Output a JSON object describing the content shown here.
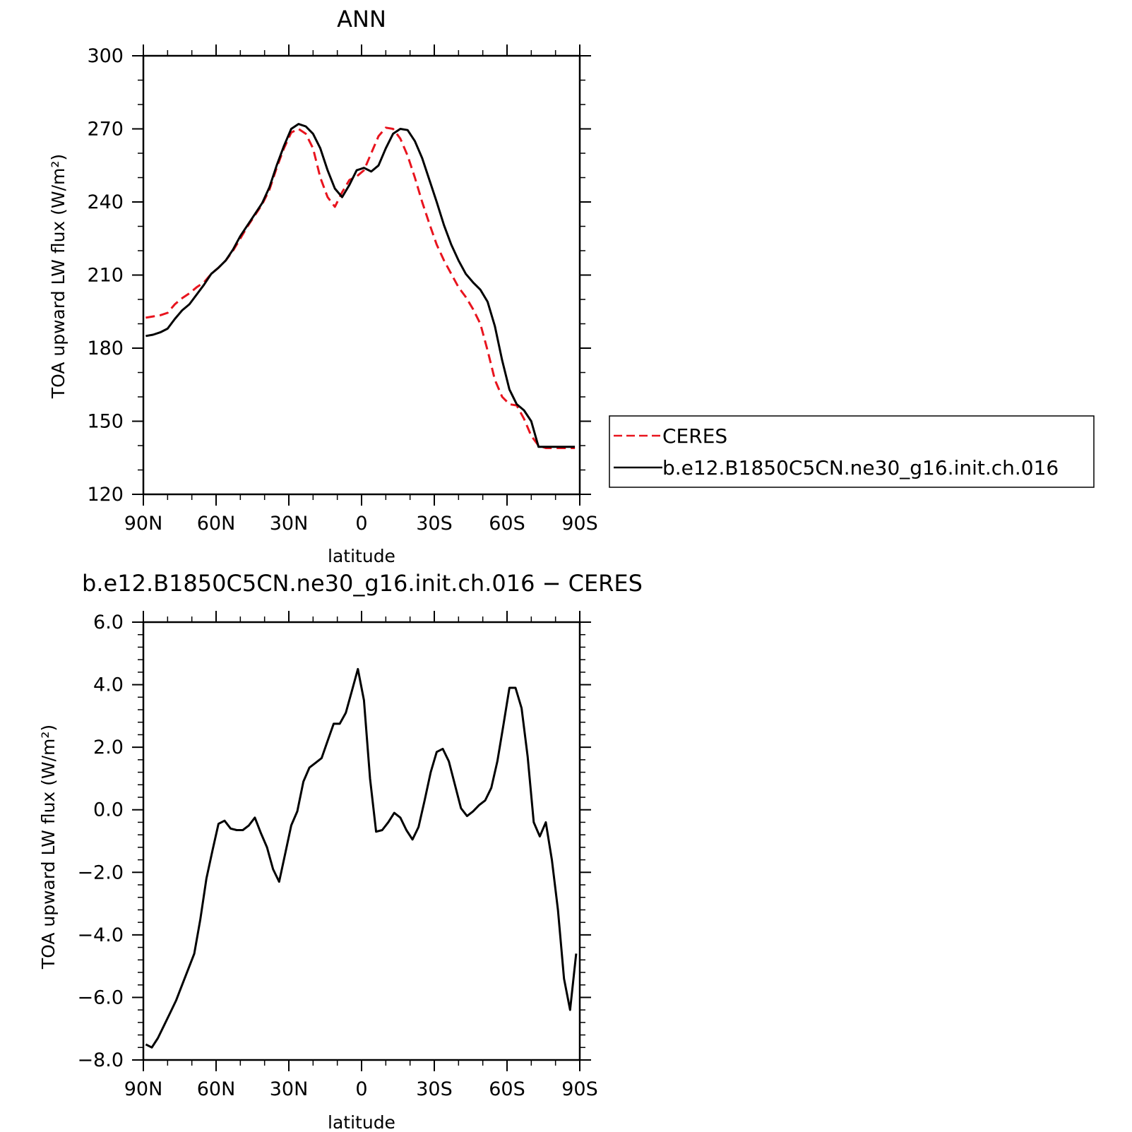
{
  "chart_data": [
    {
      "type": "line",
      "title": "ANN",
      "xlabel": "latitude",
      "ylabel": "TOA upward LW flux (W/m²)",
      "xlim": [
        90,
        -90
      ],
      "ylim": [
        120,
        300
      ],
      "yticks": [
        120,
        150,
        180,
        210,
        240,
        270,
        300
      ],
      "ytick_labels": [
        "120",
        "150",
        "180",
        "210",
        "240",
        "270",
        "300"
      ],
      "xticks": [
        90,
        60,
        30,
        0,
        -30,
        -60,
        -90
      ],
      "xtick_labels": [
        "90N",
        "60N",
        "30N",
        "0",
        "30S",
        "60S",
        "90S"
      ],
      "x": [
        89,
        86,
        83,
        80,
        77,
        74,
        71,
        68,
        65,
        62,
        59,
        56,
        53,
        50,
        47,
        44,
        41,
        38,
        35,
        32,
        29,
        26,
        23,
        20,
        17,
        14,
        11,
        8,
        5,
        2,
        -1,
        -4,
        -7,
        -10,
        -13,
        -16,
        -19,
        -22,
        -25,
        -28,
        -31,
        -34,
        -37,
        -40,
        -43,
        -46,
        -49,
        -52,
        -55,
        -58,
        -61,
        -64,
        -67,
        -70,
        -73,
        -76,
        -79,
        -82,
        -85,
        -88
      ],
      "series": [
        {
          "name": "CERES",
          "color": "#e8141e",
          "dash": "dashed",
          "values": [
            192.5,
            193,
            193.5,
            194.5,
            198,
            200.5,
            202.5,
            205,
            207,
            210.5,
            213,
            216,
            220,
            225,
            230,
            234.5,
            239,
            245,
            254,
            262,
            268.5,
            270,
            268,
            262,
            250,
            242,
            238,
            244,
            249,
            250.5,
            253,
            260,
            267,
            270.5,
            270,
            266,
            259,
            250,
            240,
            231,
            222.5,
            216,
            210.5,
            205,
            201,
            196,
            190,
            179,
            167,
            160,
            157,
            156.5,
            151,
            144,
            140,
            139,
            139,
            139,
            139,
            139
          ]
        },
        {
          "name": "b.e12.B1850C5CN.ne30_g16.init.ch.016",
          "color": "#000000",
          "dash": "solid",
          "values": [
            185,
            185.5,
            186.5,
            188,
            192,
            195.5,
            198,
            202,
            206,
            210.5,
            213,
            216,
            220.5,
            226,
            230.5,
            235,
            239.5,
            246,
            255,
            263,
            270,
            272,
            271,
            268,
            262,
            253,
            245.5,
            242,
            247,
            253,
            254,
            252.5,
            255,
            262,
            268,
            270,
            269.5,
            265,
            258,
            249,
            240,
            230.5,
            222.5,
            216,
            210.5,
            207,
            204,
            199,
            189,
            175,
            163,
            157,
            154.5,
            150,
            139.5,
            139.5,
            139.5,
            139.5,
            139.5,
            139.5
          ]
        }
      ],
      "legend": {
        "placement": "right",
        "entries": [
          "CERES",
          "b.e12.B1850C5CN.ne30_g16.init.ch.016"
        ]
      },
      "grid": false
    },
    {
      "type": "line",
      "title": "b.e12.B1850C5CN.ne30_g16.init.ch.016 − CERES",
      "xlabel": "latitude",
      "ylabel": "TOA upward LW flux (W/m²)",
      "xlim": [
        90,
        -90
      ],
      "ylim": [
        -8,
        6
      ],
      "yticks": [
        -8,
        -6,
        -4,
        -2,
        0,
        2,
        4,
        6
      ],
      "ytick_labels": [
        "−8.0",
        "−6.0",
        "−4.0",
        "−2.0",
        "0.0",
        "2.0",
        "4.0",
        "6.0"
      ],
      "xticks": [
        90,
        60,
        30,
        0,
        -30,
        -60,
        -90
      ],
      "xtick_labels": [
        "90N",
        "60N",
        "30N",
        "0",
        "30S",
        "60S",
        "90S"
      ],
      "grid": false,
      "series": [
        {
          "color": "#000000",
          "x": [
            89,
            86.5,
            84,
            81.5,
            79,
            76.5,
            74,
            71.5,
            69,
            66.5,
            64,
            61.5,
            59,
            56.5,
            54,
            51.5,
            49,
            46.5,
            44,
            41.5,
            39,
            36.5,
            34,
            31.5,
            29,
            26.5,
            24,
            21.5,
            19,
            16.5,
            14,
            11.5,
            9,
            6.5,
            4,
            1.5,
            -1,
            -3.5,
            -6,
            -8.5,
            -11,
            -13.5,
            -16,
            -18.5,
            -21,
            -23.5,
            -26,
            -28.5,
            -31,
            -33.5,
            -36,
            -38.5,
            -41,
            -43.5,
            -46,
            -48.5,
            -51,
            -53.5,
            -56,
            -58.5,
            -61,
            -63.5,
            -66,
            -68.5,
            -71,
            -73.5,
            -76,
            -78.5,
            -81,
            -83.5,
            -86,
            -88.5
          ],
          "values": [
            -7.5,
            -7.6,
            -7.3,
            -6.9,
            -6.5,
            -6.1,
            -5.6,
            -5.1,
            -4.6,
            -3.5,
            -2.2,
            -1.3,
            -0.45,
            -0.35,
            -0.6,
            -0.65,
            -0.65,
            -0.5,
            -0.25,
            -0.75,
            -1.2,
            -1.9,
            -2.3,
            -1.4,
            -0.5,
            -0.05,
            0.9,
            1.35,
            1.5,
            1.65,
            2.2,
            2.75,
            2.75,
            3.1,
            3.8,
            4.5,
            3.5,
            1.0,
            -0.7,
            -0.65,
            -0.4,
            -0.1,
            -0.25,
            -0.65,
            -0.95,
            -0.55,
            0.3,
            1.2,
            1.85,
            1.95,
            1.55,
            0.8,
            0.05,
            -0.2,
            -0.05,
            0.15,
            0.3,
            0.7,
            1.55,
            2.7,
            3.9,
            3.9,
            3.25,
            1.7,
            -0.4,
            -0.85,
            -0.4,
            -1.6,
            -3.2,
            -5.4,
            -6.4,
            -4.6
          ]
        }
      ]
    }
  ]
}
